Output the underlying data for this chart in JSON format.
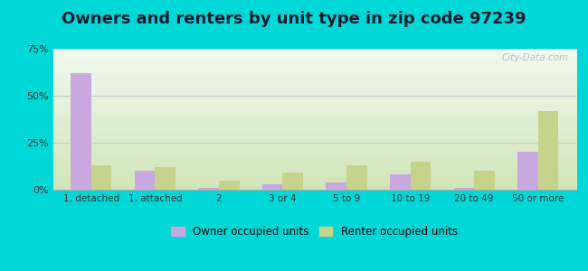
{
  "title": "Owners and renters by unit type in zip code 97239",
  "categories": [
    "1, detached",
    "1, attached",
    "2",
    "3 or 4",
    "5 to 9",
    "10 to 19",
    "20 to 49",
    "50 or more"
  ],
  "owner_values": [
    62,
    10,
    1,
    3,
    4,
    8,
    1,
    20
  ],
  "renter_values": [
    13,
    12,
    5,
    9,
    13,
    15,
    10,
    42
  ],
  "owner_color": "#c9a8e0",
  "renter_color": "#c5d48a",
  "ylim": [
    0,
    75
  ],
  "yticks": [
    0,
    25,
    50,
    75
  ],
  "yticklabels": [
    "0%",
    "25%",
    "50%",
    "75%"
  ],
  "background_outer": "#00d8d8",
  "bg_top_left": "#e8f5e8",
  "bg_bottom_right": "#c8ddb0",
  "grid_color": "#cccccc",
  "title_fontsize": 13,
  "legend_label_owner": "Owner occupied units",
  "legend_label_renter": "Renter occupied units",
  "watermark": "City-Data.com",
  "bar_width": 0.32
}
